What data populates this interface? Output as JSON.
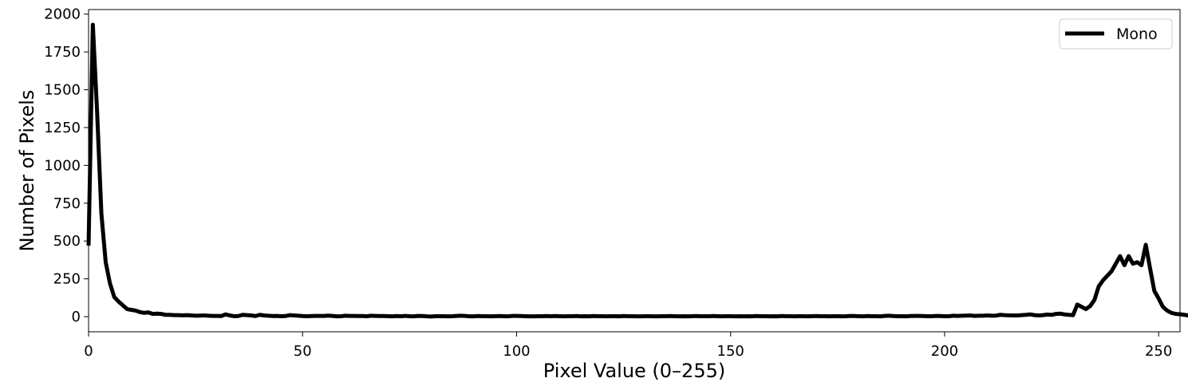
{
  "chart_data": {
    "type": "line",
    "title": "",
    "xlabel": "Pixel Value (0–255)",
    "ylabel": "Number of Pixels",
    "xlim": [
      0,
      255
    ],
    "ylim": [
      -100,
      2030
    ],
    "xticks": [
      0,
      50,
      100,
      150,
      200,
      250
    ],
    "yticks": [
      0,
      250,
      500,
      750,
      1000,
      1250,
      1500,
      1750,
      2000
    ],
    "grid": false,
    "legend_position": "top-right",
    "series": [
      {
        "name": "Mono",
        "color": "#000000",
        "x_start": 0,
        "x_step": 1,
        "values": [
          470,
          1930,
          1350,
          680,
          360,
          220,
          130,
          100,
          75,
          50,
          45,
          40,
          30,
          25,
          28,
          18,
          20,
          18,
          12,
          12,
          10,
          10,
          9,
          10,
          8,
          6,
          7,
          8,
          6,
          5,
          5,
          4,
          15,
          8,
          3,
          4,
          12,
          10,
          8,
          4,
          12,
          8,
          6,
          4,
          5,
          3,
          4,
          10,
          8,
          6,
          4,
          3,
          4,
          5,
          5,
          5,
          7,
          5,
          2,
          3,
          6,
          5,
          5,
          4,
          4,
          3,
          6,
          5,
          4,
          4,
          3,
          2,
          4,
          3,
          5,
          3,
          2,
          5,
          4,
          2,
          1,
          3,
          3,
          3,
          2,
          3,
          5,
          6,
          5,
          2,
          2,
          4,
          3,
          3,
          2,
          3,
          4,
          3,
          2,
          5,
          5,
          4,
          3,
          2,
          2,
          3,
          3,
          4,
          3,
          4,
          3,
          2,
          3,
          3,
          4,
          2,
          3,
          2,
          4,
          3,
          3,
          2,
          3,
          3,
          2,
          4,
          3,
          3,
          2,
          2,
          3,
          3,
          2,
          2,
          3,
          3,
          4,
          3,
          2,
          3,
          2,
          3,
          4,
          3,
          3,
          3,
          4,
          3,
          2,
          3,
          3,
          2,
          3,
          2,
          3,
          2,
          4,
          3,
          3,
          2,
          3,
          2,
          4,
          3,
          3,
          2,
          3,
          3,
          2,
          3,
          4,
          3,
          3,
          2,
          3,
          3,
          2,
          3,
          5,
          4,
          3,
          2,
          4,
          3,
          3,
          2,
          5,
          6,
          4,
          3,
          3,
          2,
          4,
          5,
          5,
          4,
          3,
          3,
          5,
          4,
          3,
          3,
          6,
          5,
          6,
          7,
          8,
          5,
          6,
          6,
          8,
          6,
          7,
          12,
          10,
          9,
          8,
          8,
          10,
          12,
          15,
          10,
          8,
          10,
          14,
          12,
          18,
          20,
          15,
          12,
          10,
          80,
          65,
          50,
          70,
          110,
          200,
          240,
          270,
          300,
          350,
          400,
          340,
          400,
          350,
          360,
          340,
          475,
          320,
          170,
          120,
          65,
          40,
          25,
          18,
          16,
          12,
          8,
          5,
          3
        ]
      }
    ]
  }
}
